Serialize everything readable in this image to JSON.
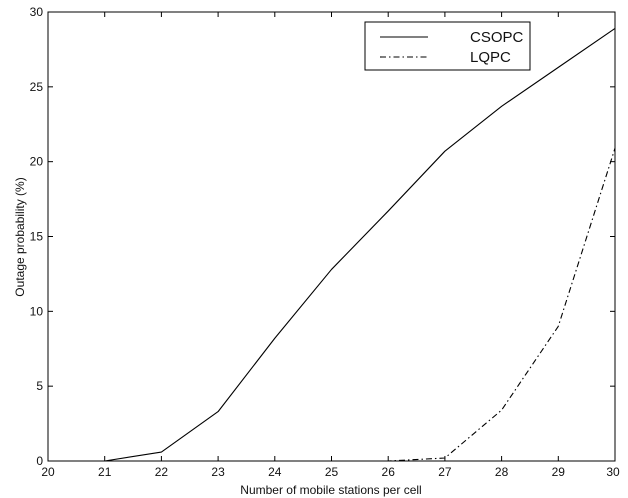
{
  "chart_data": {
    "type": "line",
    "title": "",
    "xlabel": "Number of mobile stations per cell",
    "ylabel": "Outage probability (%)",
    "xlim": [
      20,
      30
    ],
    "ylim": [
      0,
      30
    ],
    "xticks": [
      20,
      21,
      22,
      23,
      24,
      25,
      26,
      27,
      28,
      29,
      30
    ],
    "yticks": [
      0,
      5,
      10,
      15,
      20,
      25,
      30
    ],
    "grid": false,
    "legend_position": "top-right",
    "series": [
      {
        "name": "CSOPC",
        "style": "solid",
        "color": "#000000",
        "x": [
          20,
          21,
          22,
          23,
          24,
          25,
          26,
          27,
          28,
          29,
          30
        ],
        "y": [
          0,
          0,
          0.6,
          3.3,
          8.2,
          12.8,
          16.7,
          20.7,
          23.7,
          26.3,
          28.9
        ]
      },
      {
        "name": "LQPC",
        "style": "dashdot",
        "color": "#000000",
        "x": [
          20,
          21,
          22,
          23,
          24,
          25,
          26,
          27,
          28,
          29,
          30
        ],
        "y": [
          0,
          0,
          0,
          0,
          0,
          0,
          0,
          0.2,
          3.4,
          9.0,
          20.9
        ]
      }
    ]
  }
}
